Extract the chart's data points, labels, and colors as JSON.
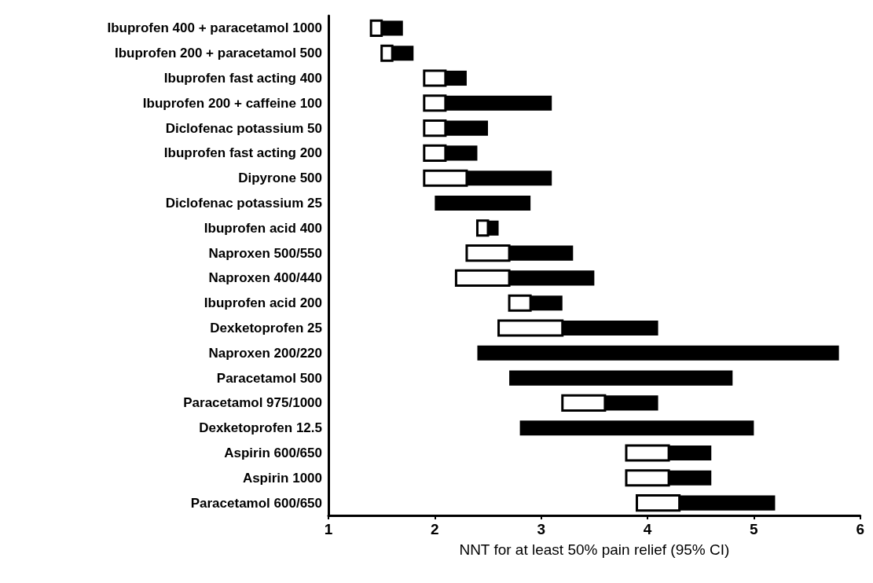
{
  "chart_data": {
    "type": "bar",
    "orientation": "horizontal",
    "xlabel": "NNT for at least 50% pain relief (95% CI)",
    "categories": [
      "Ibuprofen 400 + paracetamol 1000",
      "Ibuprofen 200 + paracetamol 500",
      "Ibuprofen fast acting 400",
      "Ibuprofen 200 + caffeine 100",
      "Diclofenac potassium 50",
      "Ibuprofen fast acting 200",
      "Dipyrone 500",
      "Diclofenac potassium 25",
      "Ibuprofen acid 400",
      "Naproxen 500/550",
      "Naproxen 400/440",
      "Ibuprofen acid 200",
      "Dexketoprofen 25",
      "Naproxen 200/220",
      "Paracetamol 500",
      "Paracetamol 975/1000",
      "Dexketoprofen 12.5",
      "Aspirin 600/650",
      "Aspirin 1000",
      "Paracetamol 600/650"
    ],
    "series": [
      {
        "color": "#ffffff",
        "base": [
          1.4,
          1.5,
          1.9,
          1.9,
          1.9,
          1.9,
          1.9,
          null,
          2.4,
          2.3,
          2.2,
          2.7,
          2.6,
          null,
          null,
          3.2,
          null,
          3.8,
          3.8,
          3.9
        ],
        "values": [
          0.1,
          0.1,
          0.2,
          0.2,
          0.2,
          0.2,
          0.4,
          null,
          0.1,
          0.4,
          0.5,
          0.2,
          0.6,
          null,
          null,
          0.4,
          null,
          0.4,
          0.4,
          0.4
        ]
      },
      {
        "color": "#000000",
        "base": [
          1.5,
          1.6,
          2.1,
          2.1,
          2.1,
          2.1,
          2.3,
          2.0,
          2.5,
          2.7,
          2.7,
          2.9,
          3.2,
          2.4,
          2.7,
          3.6,
          2.8,
          4.2,
          4.2,
          4.3
        ],
        "values": [
          0.2,
          0.2,
          0.2,
          1.0,
          0.4,
          0.3,
          0.8,
          0.9,
          0.1,
          0.6,
          0.8,
          0.3,
          0.9,
          3.4,
          2.1,
          0.5,
          2.2,
          0.4,
          0.4,
          0.9
        ]
      }
    ],
    "xlim": [
      1,
      6
    ],
    "xticks": [
      1,
      2,
      3,
      4,
      5,
      6
    ],
    "grid": false
  }
}
